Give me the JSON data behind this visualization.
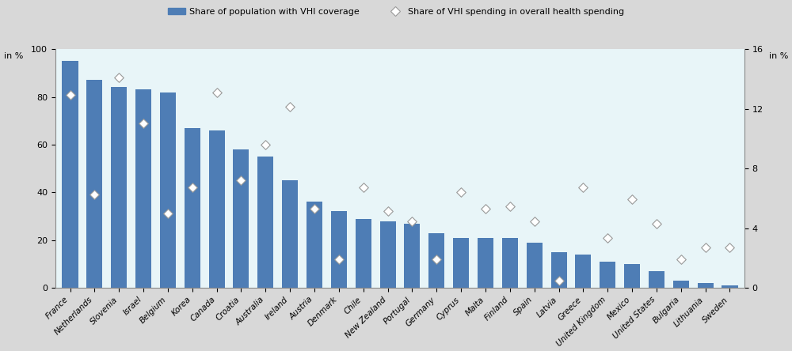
{
  "countries": [
    "France",
    "Netherlands",
    "Slovenia",
    "Israel",
    "Belgium",
    "Korea",
    "Canada",
    "Croatia",
    "Australia",
    "Ireland",
    "Austria",
    "Denmark",
    "Chile",
    "New Zealand",
    "Portugal",
    "Germany",
    "Cyprus",
    "Malta",
    "Finland",
    "Spain",
    "Latvia",
    "Greece",
    "United Kingdom",
    "Mexico",
    "United States",
    "Bulgaria",
    "Lithuania",
    "Sweden"
  ],
  "bar_values": [
    95,
    87,
    84,
    83,
    82,
    67,
    66,
    58,
    55,
    45,
    36,
    32,
    29,
    28,
    27,
    23,
    21,
    21,
    21,
    19,
    15,
    14,
    11,
    10,
    7,
    3,
    2,
    1
  ],
  "diamond_values_left": [
    81,
    39,
    88,
    69,
    31,
    42,
    82,
    45,
    60,
    76,
    33,
    12,
    42,
    32,
    28,
    12,
    40,
    33,
    34,
    28,
    3,
    42,
    21,
    37,
    27,
    12,
    17,
    17
  ],
  "bar_color": "#4e7db5",
  "diamond_face_color": "white",
  "diamond_edge_color": "#999999",
  "fig_background": "#d8d8d8",
  "legend_background": "#d8d8d8",
  "plot_background": "#e8f5f8",
  "left_ylabel": "in %",
  "right_ylabel": "in %",
  "left_ylim": [
    0,
    100
  ],
  "right_ylim": [
    0,
    16
  ],
  "left_yticks": [
    0,
    20,
    40,
    60,
    80,
    100
  ],
  "right_yticks": [
    0,
    4,
    8,
    12,
    16
  ],
  "legend_bar_label": "Share of population with VHI coverage",
  "legend_diamond_label": "Share of VHI spending in overall health spending"
}
